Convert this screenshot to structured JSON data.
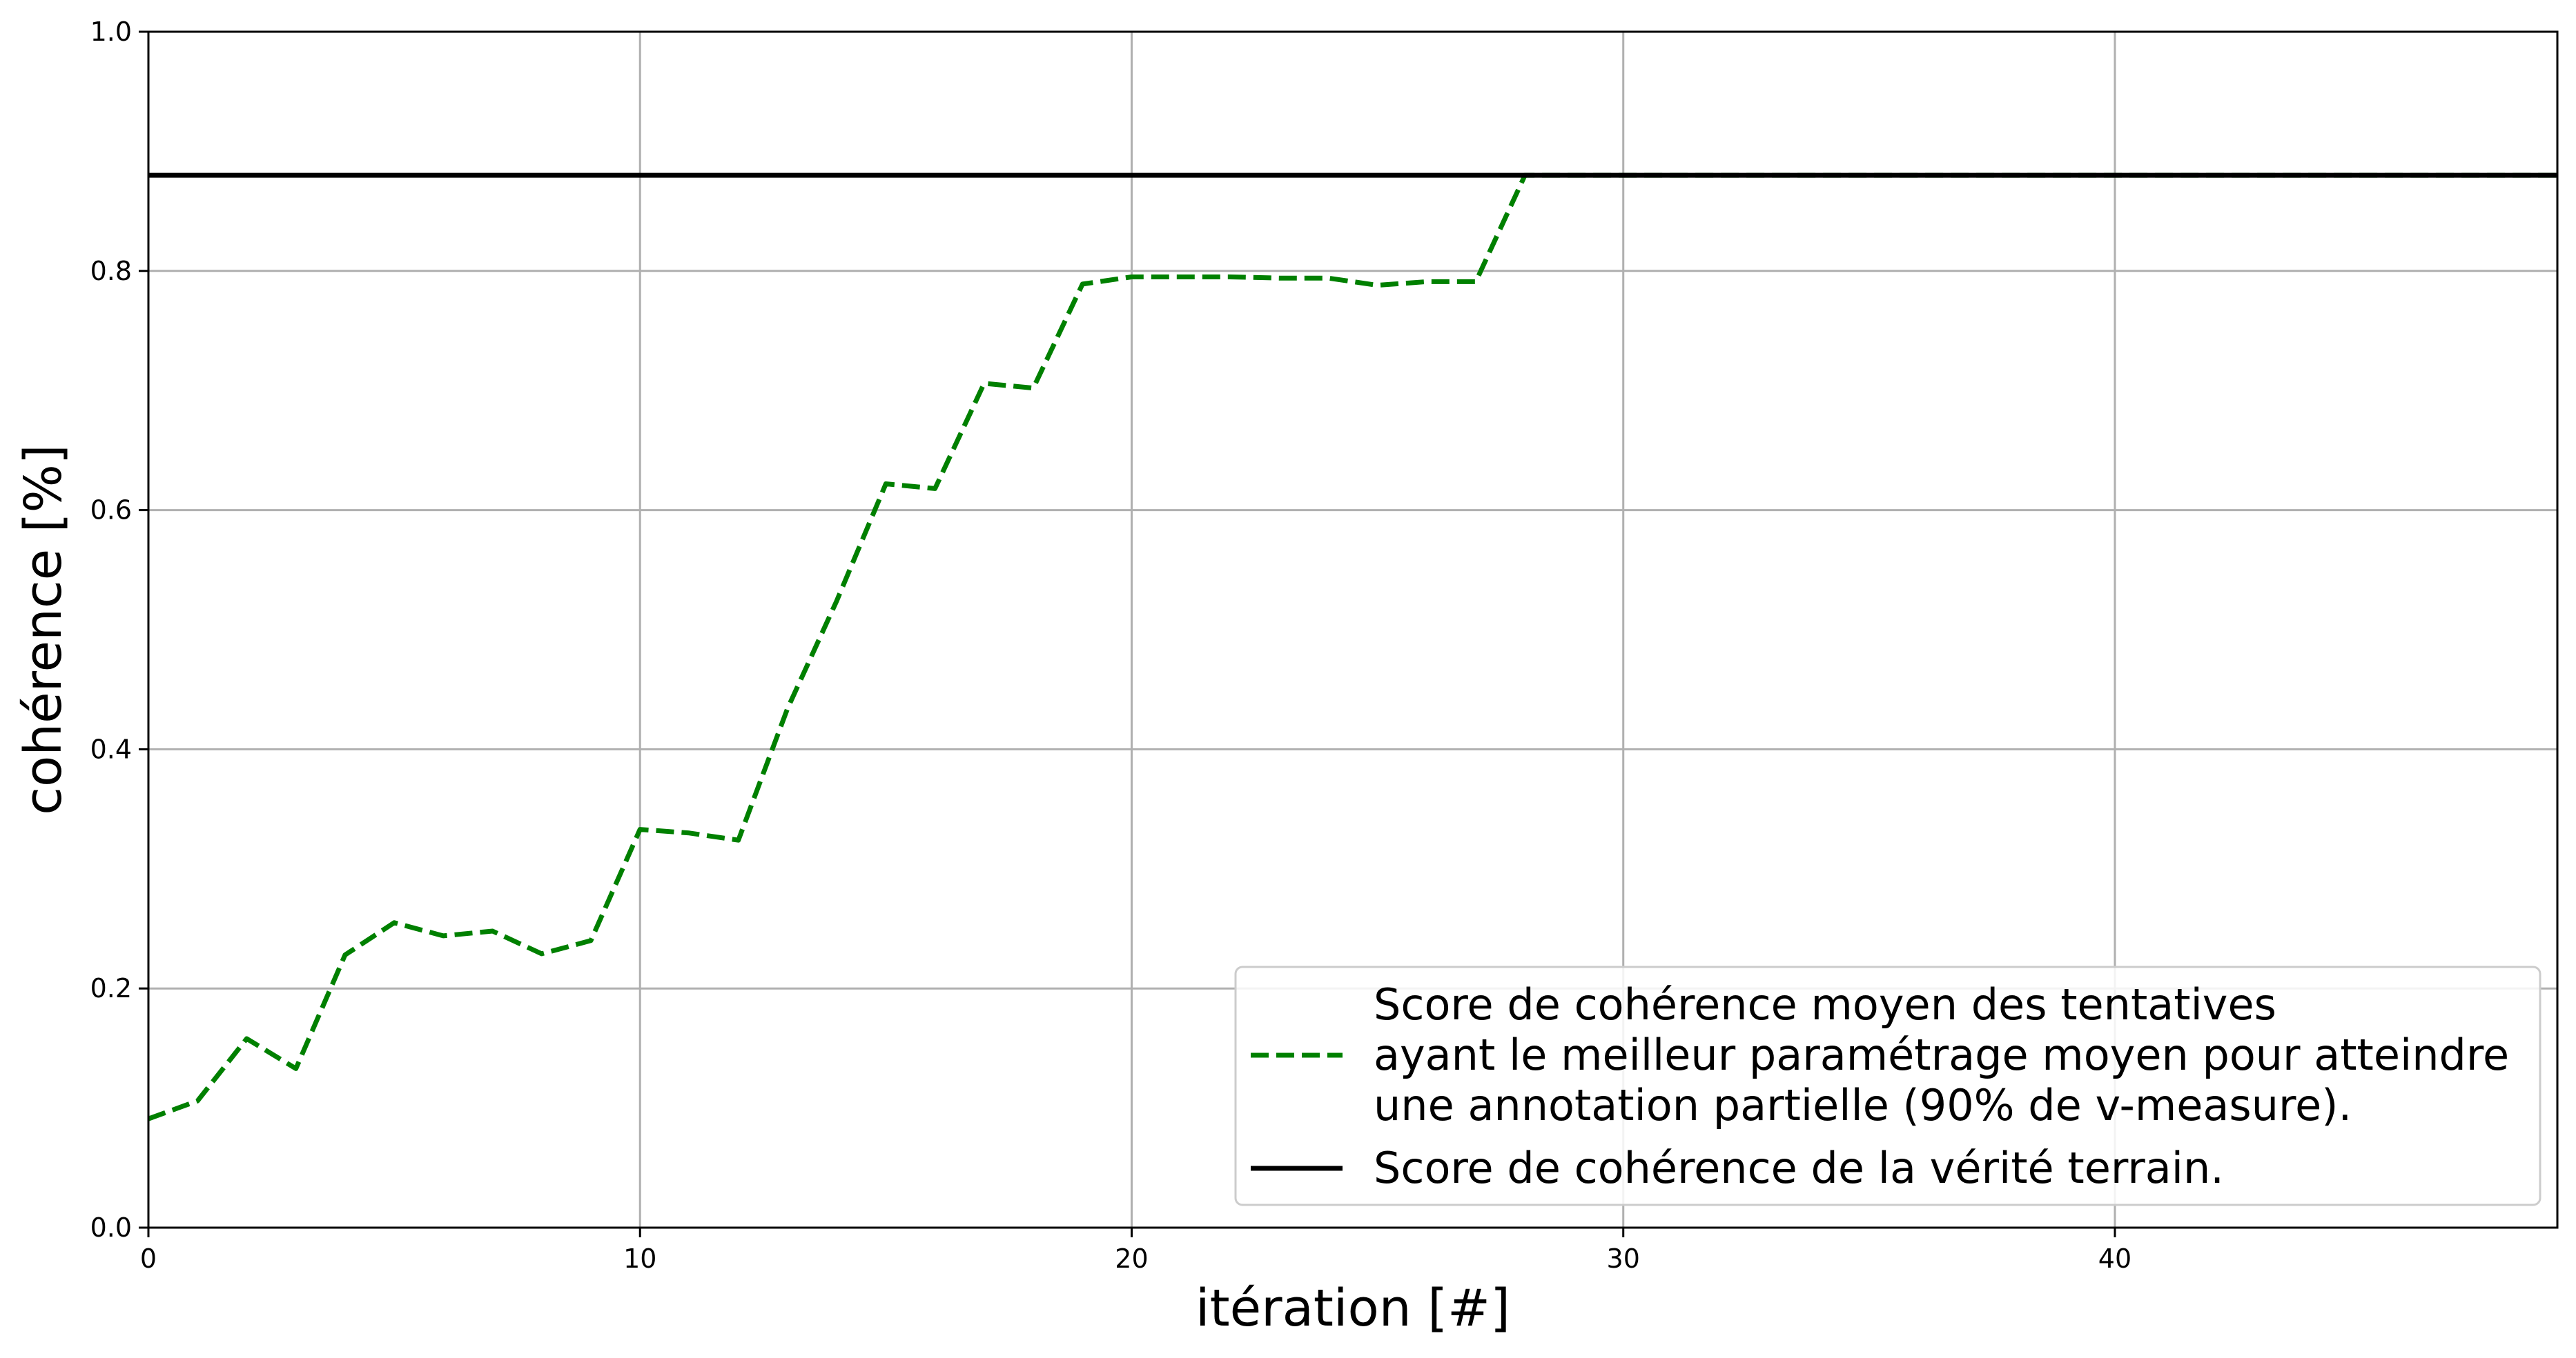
{
  "chart_data": {
    "type": "line",
    "xlabel": "itération [#]",
    "ylabel": "cohérence [%]",
    "xlim": [
      0,
      49
    ],
    "ylim": [
      0,
      1.0
    ],
    "x_ticks": [
      0,
      10,
      20,
      30,
      40
    ],
    "x_tick_labels": [
      "0",
      "10",
      "20",
      "30",
      "40"
    ],
    "y_ticks": [
      0.0,
      0.2,
      0.4,
      0.6,
      0.8,
      1.0
    ],
    "y_tick_labels": [
      "0.0",
      "0.2",
      "0.4",
      "0.6",
      "0.8",
      "1.0"
    ],
    "grid": true,
    "legend_position": "bottom-right",
    "series": [
      {
        "name": "Score de cohérence moyen des tentatives ayant le meilleur paramétrage moyen pour atteindre une annotation partielle (90% de v-measure).",
        "name_lines": [
          "Score de cohérence moyen des tentatives",
          "ayant le meilleur paramétrage moyen pour atteindre",
          "une annotation partielle (90% de v-measure)."
        ],
        "color": "#008000",
        "style": "dashed",
        "x": [
          0,
          1,
          2,
          3,
          4,
          5,
          6,
          7,
          8,
          9,
          10,
          11,
          12,
          13,
          14,
          15,
          16,
          17,
          18,
          19,
          20,
          21,
          22,
          23,
          24,
          25,
          26,
          27,
          28,
          29,
          30,
          31,
          32,
          33,
          34,
          35,
          36,
          37,
          38,
          39,
          40,
          41,
          42,
          43,
          44,
          45,
          46,
          47,
          48,
          49
        ],
        "y": [
          0.091,
          0.106,
          0.158,
          0.133,
          0.228,
          0.255,
          0.244,
          0.248,
          0.229,
          0.24,
          0.333,
          0.33,
          0.324,
          0.434,
          0.524,
          0.622,
          0.618,
          0.706,
          0.702,
          0.789,
          0.795,
          0.795,
          0.795,
          0.794,
          0.794,
          0.788,
          0.791,
          0.791,
          0.88,
          0.88,
          0.88,
          0.88,
          0.88,
          0.88,
          0.88,
          0.88,
          0.88,
          0.88,
          0.88,
          0.88,
          0.88,
          0.88,
          0.88,
          0.88,
          0.88,
          0.88,
          0.88,
          0.88,
          0.88,
          0.88
        ]
      },
      {
        "name": "Score de cohérence de la vérité terrain.",
        "name_lines": [
          "Score de cohérence de la vérité terrain."
        ],
        "color": "#000000",
        "style": "solid",
        "x": [
          0,
          49
        ],
        "y": [
          0.88,
          0.88
        ]
      }
    ]
  }
}
